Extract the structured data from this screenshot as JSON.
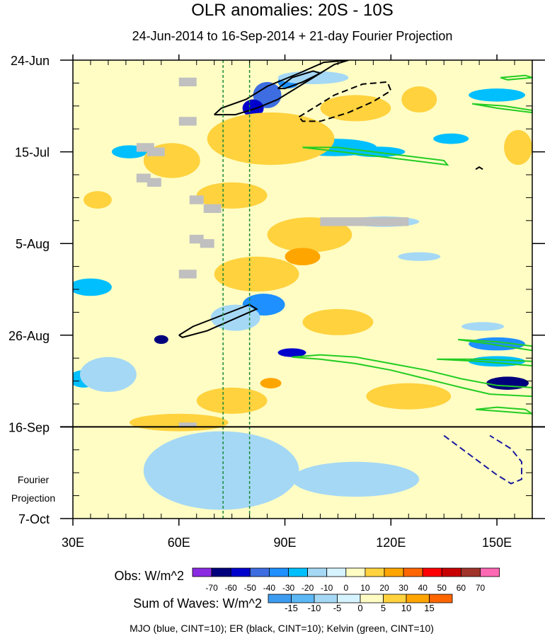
{
  "chart_data": {
    "type": "heatmap",
    "title": "OLR anomalies: 20S - 10S",
    "subtitle": "24-Jun-2014 to 16-Sep-2014 + 21-day Fourier Projection",
    "x_axis": {
      "range_deg_east": [
        30,
        160
      ],
      "ticks": [
        30,
        60,
        90,
        120,
        150
      ],
      "tick_labels": [
        "30E",
        "60E",
        "90E",
        "120E",
        "150E"
      ]
    },
    "y_axis": {
      "range_days": [
        0,
        105
      ],
      "direction": "time increases downward",
      "ticks": [
        0,
        21,
        42,
        63,
        84,
        105
      ],
      "tick_labels": [
        "24-Jun",
        "15-Jul",
        "5-Aug",
        "26-Aug",
        "16-Sep",
        "7-Oct"
      ],
      "projection_label_lines": [
        "Fourier",
        "Projection"
      ],
      "projection_start_day": 84
    },
    "reference_lines_deg_east": [
      72.5,
      80
    ],
    "obs_legend": {
      "label": "Obs: W/m^2",
      "levels": [
        "-70",
        "-60",
        "-50",
        "-40",
        "-30",
        "-20",
        "-10",
        "0",
        "10",
        "20",
        "30",
        "40",
        "50",
        "60",
        "70"
      ],
      "colors": [
        "#8a2be2",
        "#00007d",
        "#0000cd",
        "#3d6de0",
        "#1e90ff",
        "#00bfff",
        "#a5d8f5",
        "#d6f4ff",
        "#fffdc4",
        "#ffd23e",
        "#ffa500",
        "#ff6600",
        "#ff0000",
        "#c80000",
        "#a0342a",
        "#ff69b4"
      ]
    },
    "waves_legend": {
      "label": "Sum of Waves: W/m^2",
      "levels": [
        "-15",
        "-10",
        "-5",
        "0",
        "5",
        "10",
        "15"
      ],
      "colors": [
        "#3d9cf0",
        "#5cb8f5",
        "#a5d8f5",
        "#d6f4ff",
        "#fffdc4",
        "#ffd23e",
        "#ffa500",
        "#ff6600"
      ]
    },
    "footer": "MJO (blue, CINT=10); ER (black, CINT=10); Kelvin (green, CINT=10)",
    "anomaly_patches": [
      {
        "lon": 85,
        "day": 8,
        "a": 4,
        "b": 3,
        "v": -40
      },
      {
        "lon": 81,
        "day": 11,
        "a": 3,
        "b": 2,
        "v": -55
      },
      {
        "lon": 91,
        "day": 5,
        "a": 3,
        "b": 1.5,
        "v": -30
      },
      {
        "lon": 104,
        "day": 20,
        "a": 12,
        "b": 2,
        "v": -20
      },
      {
        "lon": 97,
        "day": 18,
        "a": 3,
        "b": 1,
        "v": -35
      },
      {
        "lon": 116,
        "day": 21,
        "a": 8,
        "b": 1.2,
        "v": -25
      },
      {
        "lon": 137,
        "day": 18,
        "a": 5,
        "b": 1.2,
        "v": -20
      },
      {
        "lon": 98,
        "day": 4,
        "a": 10,
        "b": 1.5,
        "v": -10
      },
      {
        "lon": 150,
        "day": 8,
        "a": 8,
        "b": 1.5,
        "v": -20
      },
      {
        "lon": 46,
        "day": 21,
        "a": 5,
        "b": 1.5,
        "v": -20
      },
      {
        "lon": 118,
        "day": 37,
        "a": 10,
        "b": 1.2,
        "v": -10
      },
      {
        "lon": 128,
        "day": 45,
        "a": 6,
        "b": 1,
        "v": -15
      },
      {
        "lon": 84,
        "day": 56,
        "a": 6,
        "b": 2.5,
        "v": -35
      },
      {
        "lon": 76,
        "day": 59,
        "a": 7,
        "b": 3,
        "v": -15
      },
      {
        "lon": 35,
        "day": 52,
        "a": 6,
        "b": 2,
        "v": -20
      },
      {
        "lon": 33,
        "day": 73,
        "a": 4,
        "b": 2,
        "v": -25
      },
      {
        "lon": 40,
        "day": 72,
        "a": 8,
        "b": 4,
        "v": -10
      },
      {
        "lon": 55,
        "day": 64,
        "a": 2,
        "b": 1,
        "v": -60
      },
      {
        "lon": 92,
        "day": 67,
        "a": 4,
        "b": 1,
        "v": -50
      },
      {
        "lon": 150,
        "day": 65,
        "a": 8,
        "b": 1.5,
        "v": -30
      },
      {
        "lon": 150,
        "day": 69,
        "a": 8,
        "b": 1.2,
        "v": -20
      },
      {
        "lon": 153,
        "day": 74,
        "a": 6,
        "b": 1.5,
        "v": -60
      },
      {
        "lon": 146,
        "day": 61,
        "a": 6,
        "b": 1,
        "v": -15
      },
      {
        "lon": 86,
        "day": 18,
        "a": 18,
        "b": 6,
        "v": 20
      },
      {
        "lon": 58,
        "day": 23,
        "a": 8,
        "b": 4,
        "v": 20
      },
      {
        "lon": 75,
        "day": 31,
        "a": 10,
        "b": 3,
        "v": 20
      },
      {
        "lon": 97,
        "day": 40,
        "a": 12,
        "b": 4,
        "v": 20
      },
      {
        "lon": 110,
        "day": 11,
        "a": 10,
        "b": 3,
        "v": 20
      },
      {
        "lon": 156,
        "day": 20,
        "a": 4,
        "b": 4,
        "v": 20
      },
      {
        "lon": 82,
        "day": 49,
        "a": 12,
        "b": 4,
        "v": 20
      },
      {
        "lon": 105,
        "day": 60,
        "a": 10,
        "b": 3,
        "v": 20
      },
      {
        "lon": 95,
        "day": 45,
        "a": 5,
        "b": 2,
        "v": 30
      },
      {
        "lon": 86,
        "day": 74,
        "a": 3,
        "b": 1.2,
        "v": 30
      },
      {
        "lon": 125,
        "day": 77,
        "a": 12,
        "b": 3,
        "v": 20
      },
      {
        "lon": 75,
        "day": 78,
        "a": 10,
        "b": 3,
        "v": 20
      },
      {
        "lon": 37,
        "day": 32,
        "a": 4,
        "b": 2,
        "v": 20
      },
      {
        "lon": 128,
        "day": 9,
        "a": 5,
        "b": 3,
        "v": 20
      },
      {
        "lon": 60,
        "day": 83,
        "a": 14,
        "b": 2,
        "v": 20
      },
      {
        "lon": 141,
        "day": 95,
        "a": 9,
        "b": 6,
        "v": 5
      },
      {
        "lon": 72,
        "day": 94,
        "a": 22,
        "b": 9,
        "v": -5
      },
      {
        "lon": 110,
        "day": 96,
        "a": 18,
        "b": 4,
        "v": -5
      }
    ],
    "missing_data_boxes": [
      {
        "lon": [
          60,
          65
        ],
        "day": [
          4,
          6
        ]
      },
      {
        "lon": [
          60,
          65
        ],
        "day": [
          13,
          15
        ]
      },
      {
        "lon": [
          48,
          53
        ],
        "day": [
          19,
          21
        ]
      },
      {
        "lon": [
          51,
          56
        ],
        "day": [
          20,
          22
        ]
      },
      {
        "lon": [
          48,
          52
        ],
        "day": [
          26,
          28
        ]
      },
      {
        "lon": [
          51,
          55
        ],
        "day": [
          27,
          29
        ]
      },
      {
        "lon": [
          63,
          67
        ],
        "day": [
          31,
          33
        ]
      },
      {
        "lon": [
          67,
          72
        ],
        "day": [
          33,
          35
        ]
      },
      {
        "lon": [
          100,
          125
        ],
        "day": [
          36,
          38
        ]
      },
      {
        "lon": [
          63,
          67
        ],
        "day": [
          40,
          42
        ]
      },
      {
        "lon": [
          66,
          70
        ],
        "day": [
          41,
          43
        ]
      },
      {
        "lon": [
          60,
          65
        ],
        "day": [
          48,
          50
        ]
      },
      {
        "lon": [
          60,
          65
        ],
        "day": [
          83,
          84
        ]
      }
    ],
    "wave_contours": [
      {
        "wave": "ER",
        "sign": "positive",
        "points": [
          [
            70,
            12.5
          ],
          [
            72,
            11
          ],
          [
            79,
            9
          ],
          [
            85,
            6
          ],
          [
            94,
            3
          ],
          [
            101,
            0.5
          ],
          [
            108,
            0
          ],
          [
            104,
            1
          ],
          [
            96,
            5
          ],
          [
            88,
            9
          ],
          [
            82,
            11
          ],
          [
            76,
            12.5
          ],
          [
            70,
            12.5
          ]
        ]
      },
      {
        "wave": "ER",
        "sign": "positive",
        "points": [
          [
            88,
            6.5
          ],
          [
            92,
            4
          ],
          [
            98,
            2.5
          ],
          [
            100,
            3
          ],
          [
            95,
            5
          ],
          [
            90,
            6.5
          ],
          [
            88,
            6.5
          ]
        ]
      },
      {
        "wave": "ER",
        "sign": "negative",
        "points": [
          [
            94,
            13
          ],
          [
            98,
            11
          ],
          [
            104,
            8
          ],
          [
            112,
            5.5
          ],
          [
            119,
            5
          ],
          [
            120,
            7
          ],
          [
            115,
            9.5
          ],
          [
            108,
            12
          ],
          [
            100,
            14
          ],
          [
            95,
            14
          ],
          [
            94,
            13
          ]
        ]
      },
      {
        "wave": "ER",
        "sign": "positive",
        "points": [
          [
            60,
            63
          ],
          [
            64,
            61
          ],
          [
            72,
            58.5
          ],
          [
            80,
            56
          ],
          [
            82,
            57
          ],
          [
            75,
            59.5
          ],
          [
            68,
            62
          ],
          [
            61,
            63.5
          ],
          [
            60,
            63
          ]
        ]
      },
      {
        "wave": "ER",
        "sign": "positive",
        "points": [
          [
            144,
            25
          ],
          [
            145,
            24.5
          ],
          [
            146,
            25
          ]
        ]
      },
      {
        "wave": "MJO",
        "sign": "negative",
        "points": [
          [
            135,
            86
          ],
          [
            140,
            89
          ],
          [
            145,
            92
          ],
          [
            150,
            95
          ],
          [
            154,
            97
          ],
          [
            157,
            96
          ],
          [
            157,
            92
          ],
          [
            154,
            89
          ],
          [
            148,
            86
          ]
        ]
      },
      {
        "wave": "Kelvin",
        "sign": "negative",
        "points": [
          [
            95,
            20
          ],
          [
            106,
            21
          ],
          [
            116,
            22
          ],
          [
            126,
            23
          ],
          [
            136,
            24
          ],
          [
            135,
            23
          ],
          [
            125,
            22
          ],
          [
            115,
            21
          ],
          [
            105,
            20
          ],
          [
            95,
            20
          ]
        ]
      },
      {
        "wave": "Kelvin",
        "sign": "negative",
        "points": [
          [
            151,
            4
          ],
          [
            158,
            3.5
          ],
          [
            160,
            4
          ],
          [
            153,
            4.5
          ],
          [
            151,
            4
          ]
        ]
      },
      {
        "wave": "Kelvin",
        "sign": "negative",
        "points": [
          [
            143,
            10
          ],
          [
            150,
            11
          ],
          [
            160,
            12
          ],
          [
            160,
            11.5
          ],
          [
            152,
            10.5
          ],
          [
            143,
            10
          ]
        ]
      },
      {
        "wave": "Kelvin",
        "sign": "negative",
        "points": [
          [
            92,
            68
          ],
          [
            100,
            68.5
          ],
          [
            110,
            69.5
          ],
          [
            120,
            71
          ],
          [
            130,
            73
          ],
          [
            140,
            75
          ],
          [
            148,
            76.5
          ],
          [
            160,
            77
          ],
          [
            160,
            75
          ],
          [
            150,
            74.5
          ],
          [
            140,
            73
          ],
          [
            130,
            71
          ],
          [
            120,
            69.5
          ],
          [
            110,
            68
          ],
          [
            100,
            67.5
          ],
          [
            92,
            68
          ]
        ]
      },
      {
        "wave": "Kelvin",
        "sign": "negative",
        "points": [
          [
            139,
            64
          ],
          [
            148,
            65
          ],
          [
            160,
            66.5
          ],
          [
            160,
            65.5
          ],
          [
            150,
            64.5
          ],
          [
            139,
            64
          ]
        ]
      },
      {
        "wave": "Kelvin",
        "sign": "negative",
        "points": [
          [
            133,
            68.5
          ],
          [
            145,
            69
          ],
          [
            160,
            70
          ],
          [
            160,
            69
          ],
          [
            145,
            68.5
          ],
          [
            133,
            68.5
          ]
        ]
      },
      {
        "wave": "Kelvin",
        "sign": "negative",
        "points": [
          [
            144,
            80
          ],
          [
            152,
            80.5
          ],
          [
            160,
            81
          ],
          [
            158,
            80
          ],
          [
            150,
            79.5
          ],
          [
            144,
            80
          ]
        ]
      }
    ]
  }
}
